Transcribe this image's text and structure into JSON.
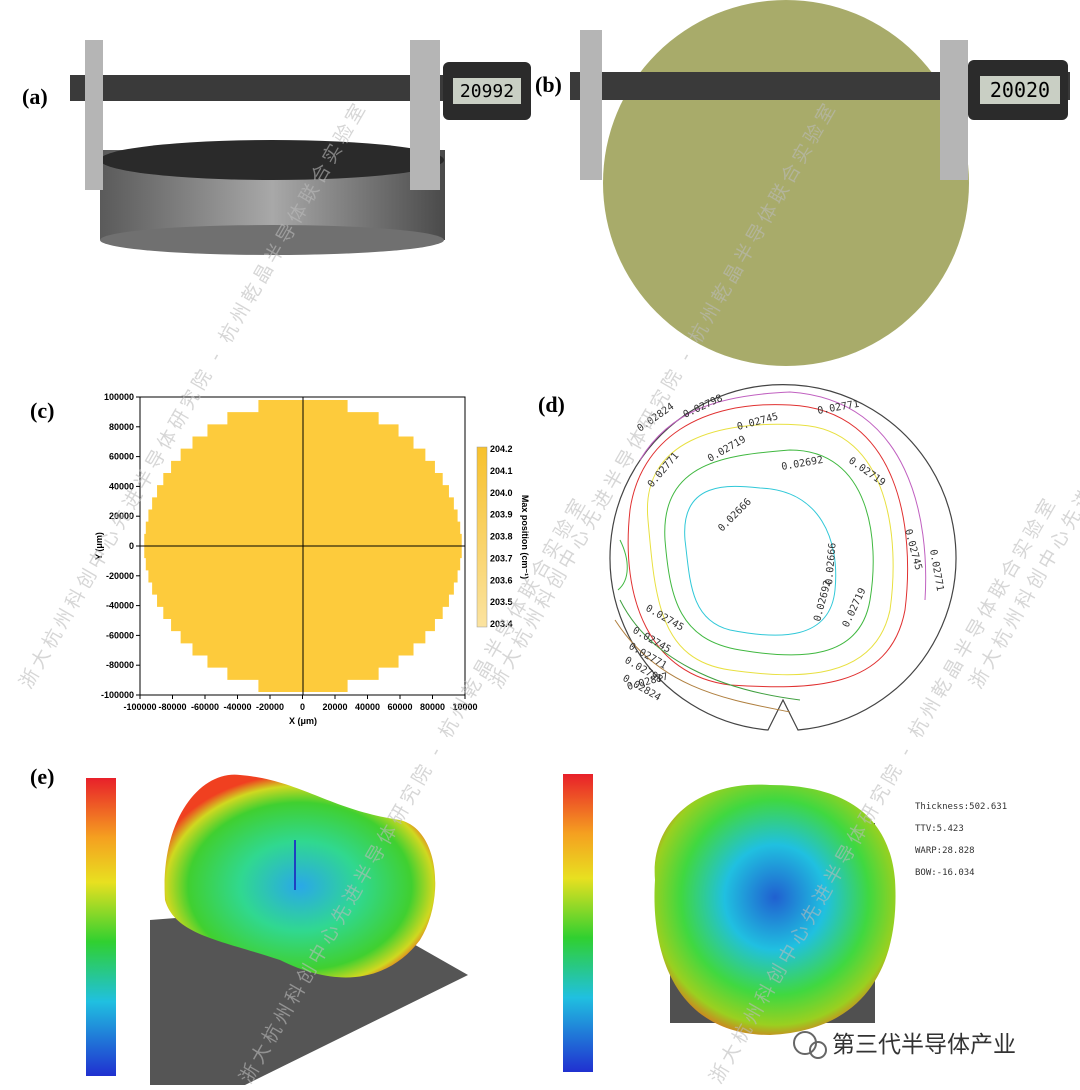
{
  "panels": {
    "a": {
      "label": "(a)",
      "display": "20992"
    },
    "b": {
      "label": "(b)",
      "display": "20020"
    },
    "c": {
      "label": "(c)",
      "x_label": "X (μm)",
      "y_label": "Y (μm)",
      "colorbar_label": "Max position (cm⁻¹)",
      "xticks": [
        "-100000",
        "-80000",
        "-60000",
        "-40000",
        "-20000",
        "0",
        "20000",
        "40000",
        "60000",
        "80000",
        "10000"
      ],
      "yticks": [
        "100000",
        "80000",
        "60000",
        "40000",
        "20000",
        "0",
        "-20000",
        "-40000",
        "-60000",
        "-80000",
        "-100000"
      ],
      "colorbar_ticks": [
        "204.2",
        "204.1",
        "204.0",
        "203.9",
        "203.8",
        "203.7",
        "203.6",
        "203.5",
        "203.4"
      ]
    },
    "d": {
      "label": "(d)",
      "contour_labels": [
        "0.02824",
        "0.02798",
        "0.02745",
        "0.02771",
        "0.02771",
        "0.02719",
        "0.02692",
        "0.02719",
        "0.02666",
        "0.02745",
        "0.02771",
        "0.02666",
        "0.02692",
        "0.02719",
        "0.02745",
        "0.02745",
        "0.02771",
        "0.02798",
        "0.02824",
        "0.02877"
      ]
    },
    "e": {
      "label": "(e)",
      "metrics": [
        "Thickness:502.631",
        "TTV:5.423",
        "WARP:28.828",
        "BOW:-16.034"
      ]
    }
  },
  "watermark": "浙大杭州科创中心先进半导体研究院 - 杭州乾晶半导体联合实验室",
  "brand": "第三代半导体产业"
}
